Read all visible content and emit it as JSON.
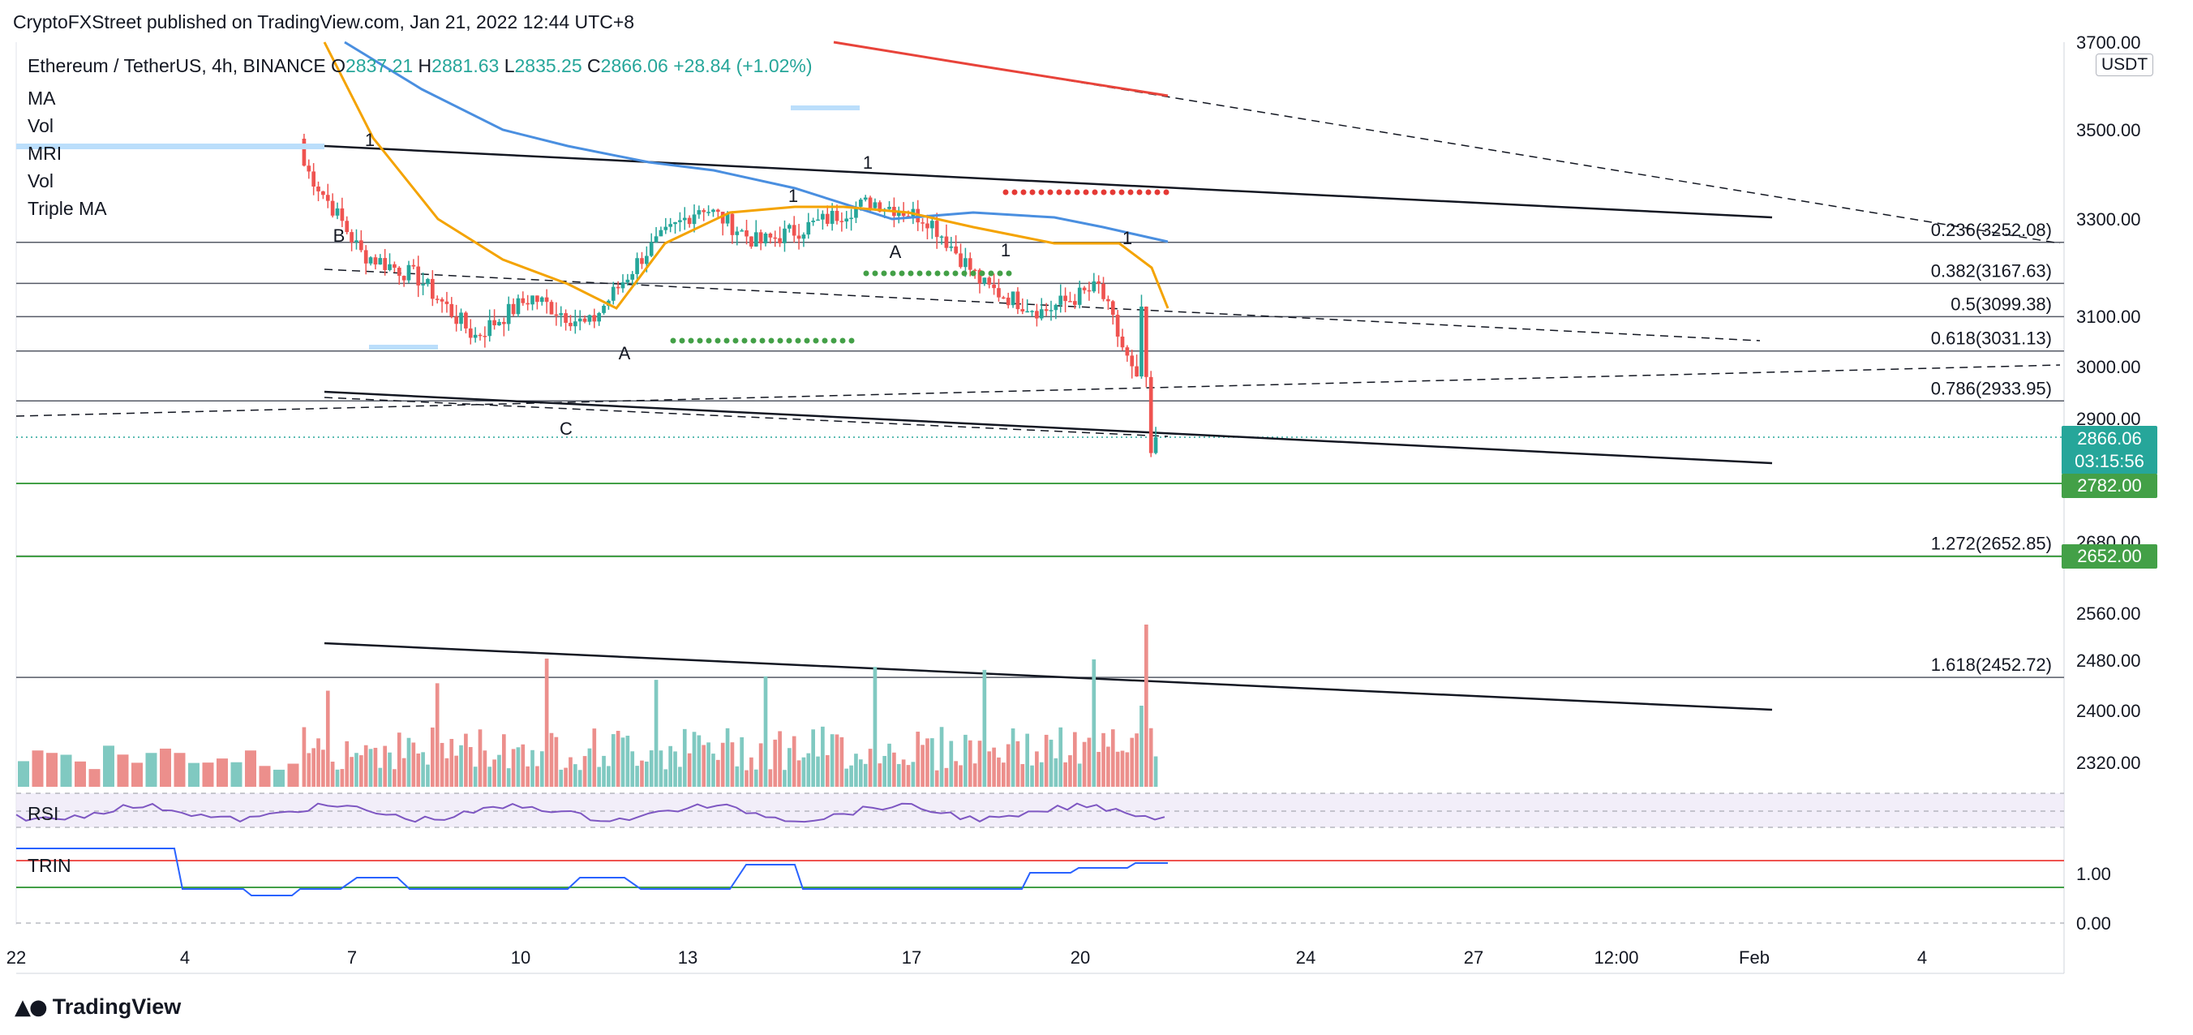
{
  "header": {
    "publisher": "CryptoFXStreet published on TradingView.com, Jan 21, 2022 12:44 UTC+8"
  },
  "legend": {
    "symbol": "Ethereum / TetherUS, 4h, BINANCE",
    "o_label": "O",
    "o_value": "2837.21",
    "h_label": "H",
    "h_value": "2881.63",
    "l_label": "L",
    "l_value": "2835.25",
    "c_label": "C",
    "c_value": "2866.06",
    "change": "+28.84 (+1.02%)",
    "indicators": [
      "MA",
      "Vol",
      "MRI",
      "Vol",
      "Triple MA"
    ]
  },
  "panes": {
    "rsi_label": "RSI",
    "trin_label": "TRIN"
  },
  "price_axis": {
    "unit": "USDT",
    "ticks": [
      "3700.00",
      "3500.00",
      "3300.00",
      "3100.00",
      "3000.00",
      "2900.00",
      "2680.00",
      "2560.00",
      "2480.00",
      "2400.00",
      "2320.00"
    ],
    "trin_ticks": [
      "1.00",
      "0.00"
    ]
  },
  "price_tags": {
    "last_price": "2866.06",
    "countdown": "03:15:56",
    "support_1": "2782.00",
    "support_2": "2652.00"
  },
  "fib_levels": [
    {
      "label": "0.236(3252.08)"
    },
    {
      "label": "0.382(3167.63)"
    },
    {
      "label": "0.5(3099.38)"
    },
    {
      "label": "0.618(3031.13)"
    },
    {
      "label": "0.786(2933.95)"
    },
    {
      "label": "1.272(2652.85)"
    },
    {
      "label": "1.618(2452.72)"
    }
  ],
  "time_axis": [
    "22",
    "4",
    "7",
    "10",
    "13",
    "17",
    "20",
    "24",
    "27",
    "12:00",
    "Feb",
    "4"
  ],
  "wave_labels": [
    "B",
    "1",
    "A",
    "C",
    "1",
    "1",
    "A",
    "1",
    "1"
  ],
  "colors": {
    "up": "#26a69a",
    "down": "#ef5350",
    "ma_orange": "#f4a300",
    "ma_blue": "#4a8fe0",
    "ma_red": "#e8433a",
    "support_green": "#43a047",
    "rsi_purple": "#7e57c2"
  },
  "footer": {
    "brand": "TradingView"
  },
  "chart_data": {
    "type": "candlestick",
    "title": "Ethereum / TetherUS, 4h, BINANCE",
    "y_range": [
      2300,
      3720
    ],
    "fib_retracement": [
      {
        "ratio": 0.236,
        "price": 3252.08
      },
      {
        "ratio": 0.382,
        "price": 3167.63
      },
      {
        "ratio": 0.5,
        "price": 3099.38
      },
      {
        "ratio": 0.618,
        "price": 3031.13
      },
      {
        "ratio": 0.786,
        "price": 2933.95
      },
      {
        "ratio": 1.272,
        "price": 2652.85
      },
      {
        "ratio": 1.618,
        "price": 2452.72
      }
    ],
    "support_levels": [
      2782.0,
      2652.0
    ],
    "last": {
      "open": 2837.21,
      "high": 2881.63,
      "low": 2835.25,
      "close": 2866.06
    },
    "approx_close_path": [
      {
        "date": "Jan 6",
        "close": 3420
      },
      {
        "date": "Jan 7",
        "close": 3230
      },
      {
        "date": "Jan 8",
        "close": 3180
      },
      {
        "date": "Jan 9",
        "close": 3060
      },
      {
        "date": "Jan 10",
        "close": 3140
      },
      {
        "date": "Jan 11",
        "close": 3080
      },
      {
        "date": "Jan 12",
        "close": 3230
      },
      {
        "date": "Jan 13",
        "close": 3330
      },
      {
        "date": "Jan 14",
        "close": 3250
      },
      {
        "date": "Jan 15",
        "close": 3290
      },
      {
        "date": "Jan 16",
        "close": 3340
      },
      {
        "date": "Jan 17",
        "close": 3300
      },
      {
        "date": "Jan 18",
        "close": 3160
      },
      {
        "date": "Jan 19",
        "close": 3110
      },
      {
        "date": "Jan 20",
        "close": 3160
      },
      {
        "date": "Jan 21",
        "close": 2866
      }
    ]
  }
}
